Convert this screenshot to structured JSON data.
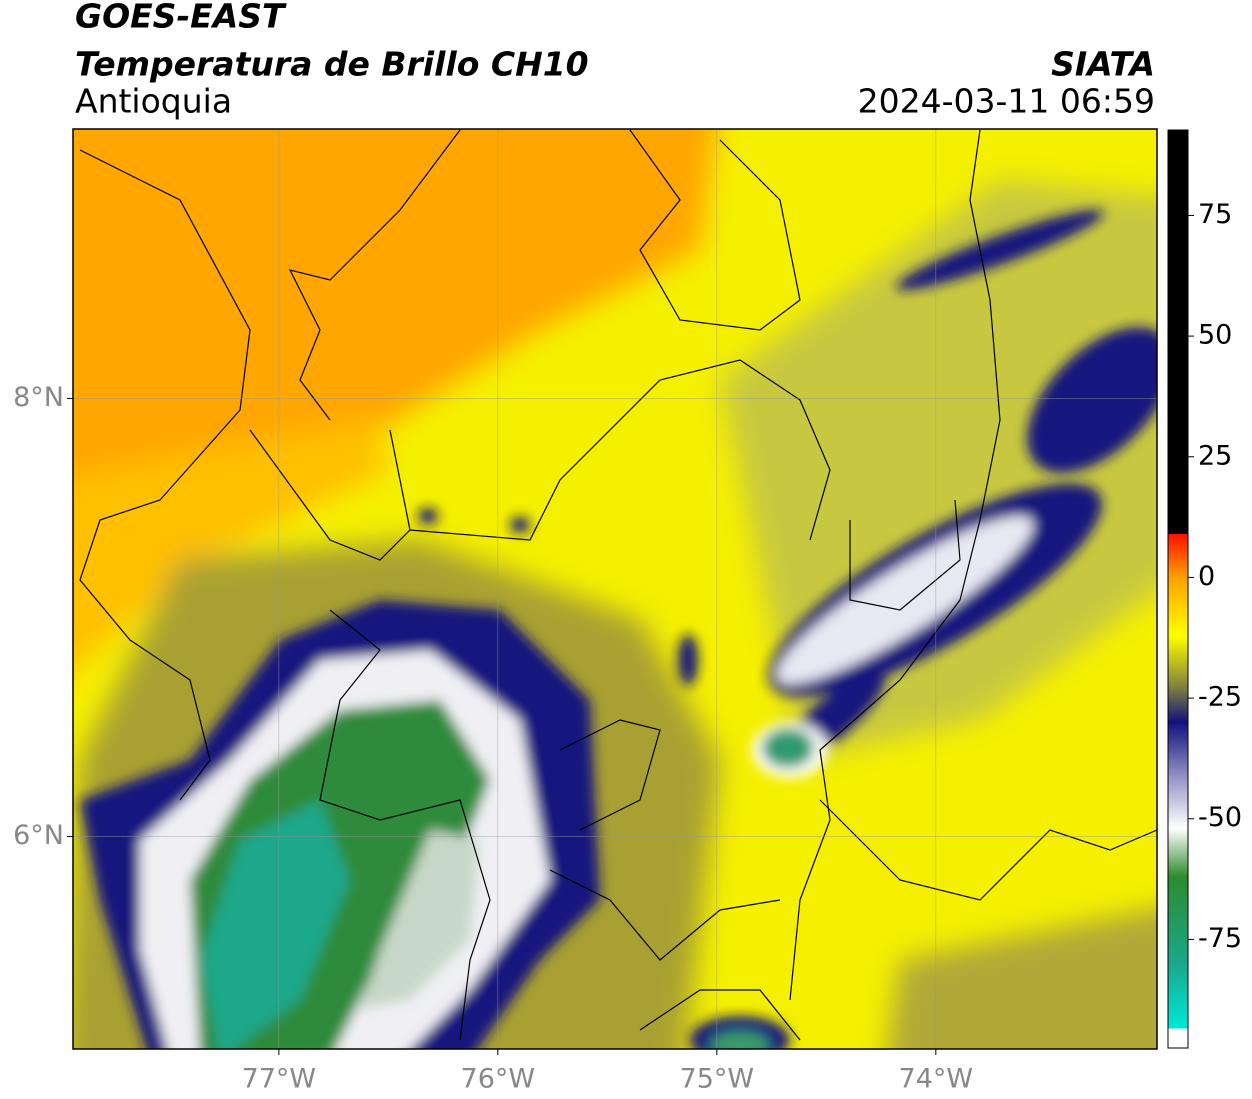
{
  "header": {
    "satellite": "GOES-EAST",
    "product": "Temperatura de Brillo CH10",
    "region": "Antioquia",
    "source": "SIATA",
    "datetime": "2024-03-11 06:59"
  },
  "map": {
    "xlim": [
      -77.94,
      -72.99
    ],
    "ylim": [
      5.03,
      9.23
    ],
    "xticks": [
      {
        "value": -77,
        "label": "77°W"
      },
      {
        "value": -76,
        "label": "76°W"
      },
      {
        "value": -75,
        "label": "75°W"
      },
      {
        "value": -74,
        "label": "74°W"
      }
    ],
    "yticks": [
      {
        "value": 6,
        "label": "6°N"
      },
      {
        "value": 8,
        "label": "8°N"
      }
    ],
    "grid": true
  },
  "colorbar": {
    "lim": [
      -97.5,
      92.7
    ],
    "ticks": [
      -75,
      -50,
      -25,
      0,
      25,
      50,
      75
    ],
    "stops": [
      {
        "value": -97.5,
        "color": "#ffffff"
      },
      {
        "value": -93.5,
        "color": "#ffffff"
      },
      {
        "value": -93.5,
        "color": "#00e8d8"
      },
      {
        "value": -80,
        "color": "#1aa88a"
      },
      {
        "value": -62,
        "color": "#2e8b2e"
      },
      {
        "value": -52,
        "color": "#ffffff"
      },
      {
        "value": -42,
        "color": "#9a9ac8"
      },
      {
        "value": -30,
        "color": "#12127e"
      },
      {
        "value": -22,
        "color": "#8a8a3a"
      },
      {
        "value": -12,
        "color": "#ffff00"
      },
      {
        "value": 0,
        "color": "#ffa000"
      },
      {
        "value": 9,
        "color": "#ff1000"
      },
      {
        "value": 9,
        "color": "#000000"
      },
      {
        "value": 92.7,
        "color": "#000000"
      }
    ]
  }
}
